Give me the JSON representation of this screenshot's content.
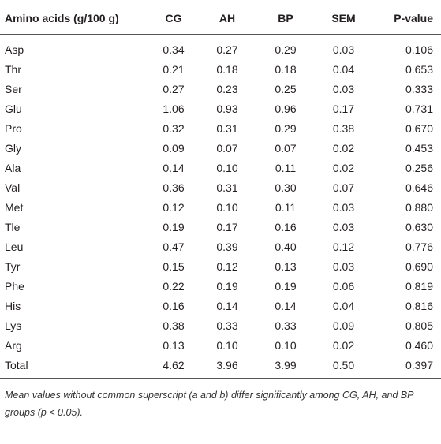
{
  "table": {
    "header": [
      "Amino acids (g/100 g)",
      "CG",
      "AH",
      "BP",
      "SEM",
      "P-value"
    ],
    "rows": [
      [
        "Asp",
        "0.34",
        "0.27",
        "0.29",
        "0.03",
        "0.106"
      ],
      [
        "Thr",
        "0.21",
        "0.18",
        "0.18",
        "0.04",
        "0.653"
      ],
      [
        "Ser",
        "0.27",
        "0.23",
        "0.25",
        "0.03",
        "0.333"
      ],
      [
        "Glu",
        "1.06",
        "0.93",
        "0.96",
        "0.17",
        "0.731"
      ],
      [
        "Pro",
        "0.32",
        "0.31",
        "0.29",
        "0.38",
        "0.670"
      ],
      [
        "Gly",
        "0.09",
        "0.07",
        "0.07",
        "0.02",
        "0.453"
      ],
      [
        "Ala",
        "0.14",
        "0.10",
        "0.11",
        "0.02",
        "0.256"
      ],
      [
        "Val",
        "0.36",
        "0.31",
        "0.30",
        "0.07",
        "0.646"
      ],
      [
        "Met",
        "0.12",
        "0.10",
        "0.11",
        "0.03",
        "0.880"
      ],
      [
        "Tle",
        "0.19",
        "0.17",
        "0.16",
        "0.03",
        "0.630"
      ],
      [
        "Leu",
        "0.47",
        "0.39",
        "0.40",
        "0.12",
        "0.776"
      ],
      [
        "Tyr",
        "0.15",
        "0.12",
        "0.13",
        "0.03",
        "0.690"
      ],
      [
        "Phe",
        "0.22",
        "0.19",
        "0.19",
        "0.06",
        "0.819"
      ],
      [
        "His",
        "0.16",
        "0.14",
        "0.14",
        "0.04",
        "0.816"
      ],
      [
        "Lys",
        "0.38",
        "0.33",
        "0.33",
        "0.09",
        "0.805"
      ],
      [
        "Arg",
        "0.13",
        "0.10",
        "0.10",
        "0.02",
        "0.460"
      ],
      [
        "Total",
        "4.62",
        "3.96",
        "3.99",
        "0.50",
        "0.397"
      ]
    ],
    "footnote": "Mean values without common superscript (a and b) differ significantly among CG, AH, and BP groups (p < 0.05)."
  }
}
